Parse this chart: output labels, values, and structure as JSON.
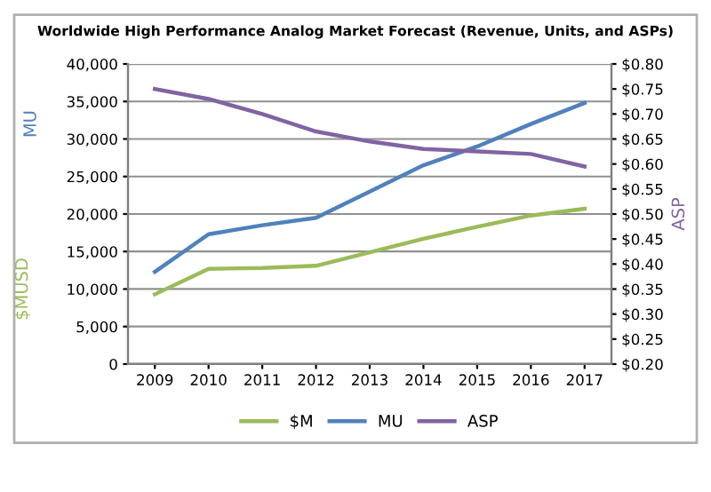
{
  "chart_data": {
    "type": "line",
    "title": "Worldwide High Performance Analog Market Forecast (Revenue, Units, and ASPs)",
    "ylabel": "$MUSD",
    "y2label": "ASP",
    "annotations": [
      "MU"
    ],
    "categories": [
      "2009",
      "2010",
      "2011",
      "2012",
      "2013",
      "2014",
      "2015",
      "2016",
      "2017"
    ],
    "series": [
      {
        "name": "$M",
        "color": "#9bbb59",
        "values": [
          9300,
          12700,
          12800,
          13100,
          14900,
          16700,
          18300,
          19800,
          20700
        ]
      },
      {
        "name": "MU",
        "color": "#4f81bd",
        "values": [
          12300,
          17300,
          18500,
          19500,
          23000,
          26500,
          29000,
          32000,
          34800
        ]
      },
      {
        "name": "ASP",
        "color": "#8064a2",
        "axis": "y2",
        "values": [
          0.75,
          0.73,
          0.7,
          0.665,
          0.645,
          0.63,
          0.625,
          0.62,
          0.595
        ]
      }
    ],
    "ylim": [
      0,
      40000
    ],
    "yticks": [
      {
        "value": 0,
        "label": "0"
      },
      {
        "value": 5000,
        "label": "5,000"
      },
      {
        "value": 10000,
        "label": "10,000"
      },
      {
        "value": 15000,
        "label": "15,000"
      },
      {
        "value": 20000,
        "label": "20,000"
      },
      {
        "value": 25000,
        "label": "25,000"
      },
      {
        "value": 30000,
        "label": "30,000"
      },
      {
        "value": 35000,
        "label": "35,000"
      },
      {
        "value": 40000,
        "label": "40,000"
      }
    ],
    "y2lim": [
      0.2,
      0.8
    ],
    "y2ticks": [
      {
        "value": 0.2,
        "label": "$0.20"
      },
      {
        "value": 0.25,
        "label": "$0.25"
      },
      {
        "value": 0.3,
        "label": "$0.30"
      },
      {
        "value": 0.35,
        "label": "$0.35"
      },
      {
        "value": 0.4,
        "label": "$0.40"
      },
      {
        "value": 0.45,
        "label": "$0.45"
      },
      {
        "value": 0.5,
        "label": "$0.50"
      },
      {
        "value": 0.55,
        "label": "$0.55"
      },
      {
        "value": 0.6,
        "label": "$0.60"
      },
      {
        "value": 0.65,
        "label": "$0.65"
      },
      {
        "value": 0.7,
        "label": "$0.70"
      },
      {
        "value": 0.75,
        "label": "$0.75"
      },
      {
        "value": 0.8,
        "label": "$0.80"
      }
    ],
    "grid": "y",
    "legend": "bottom",
    "marker": "none",
    "line_style": "solid"
  }
}
